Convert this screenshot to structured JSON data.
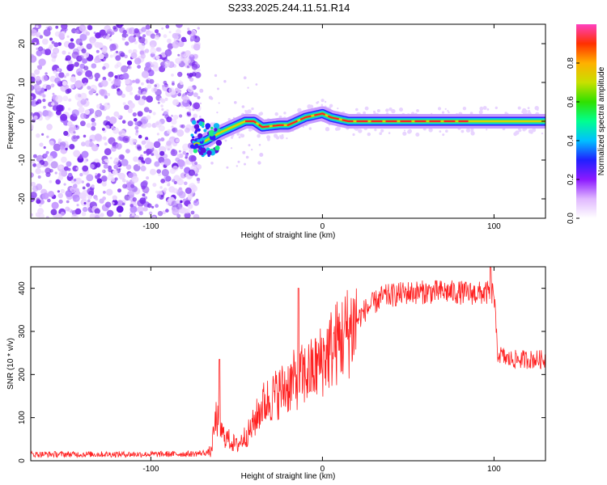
{
  "chart_data": [
    {
      "type": "heatmap",
      "title": "S233.2025.244.11.51.R14",
      "xlabel": "Height of straight line (km)",
      "ylabel": "Frequency (Hz)",
      "xlim": [
        -170,
        130
      ],
      "ylim": [
        -25,
        25
      ],
      "xticks": [
        -100,
        0,
        100
      ],
      "yticks": [
        -20,
        -10,
        0,
        10,
        20
      ],
      "noise_region_x": [
        -170,
        -75
      ],
      "ridge": [
        {
          "h": -75,
          "f": -6
        },
        {
          "h": -68,
          "f": -5
        },
        {
          "h": -60,
          "f": -3
        },
        {
          "h": -50,
          "f": -1
        },
        {
          "h": -45,
          "f": 0
        },
        {
          "h": -40,
          "f": 0
        },
        {
          "h": -35,
          "f": -1.5
        },
        {
          "h": -25,
          "f": -1
        },
        {
          "h": -20,
          "f": -1
        },
        {
          "h": -15,
          "f": 0
        },
        {
          "h": -10,
          "f": 1
        },
        {
          "h": -5,
          "f": 1.5
        },
        {
          "h": 0,
          "f": 2
        },
        {
          "h": 5,
          "f": 1
        },
        {
          "h": 10,
          "f": 0.5
        },
        {
          "h": 15,
          "f": 0
        },
        {
          "h": 130,
          "f": 0
        }
      ],
      "colorbar": {
        "label": "Normalized spectral amplitude",
        "range": [
          0,
          1
        ],
        "ticks": [
          0.0,
          0.2,
          0.4,
          0.6,
          0.8
        ],
        "tick_labels": [
          "0.0",
          "0.2",
          "0.4",
          "0.6",
          "0.8"
        ],
        "colors": [
          "#ffffff",
          "#e0b8ff",
          "#8c1aff",
          "#2020ff",
          "#00c0ff",
          "#00ff90",
          "#30e000",
          "#c8e000",
          "#ffb000",
          "#ff3000",
          "#ff40c0"
        ]
      }
    },
    {
      "type": "line",
      "xlabel": "Height of straight line (km)",
      "ylabel": "SNR (10 * v/v)",
      "xlim": [
        -170,
        130
      ],
      "ylim": [
        0,
        450
      ],
      "xticks": [
        -100,
        0,
        100
      ],
      "yticks": [
        0,
        100,
        200,
        300,
        400
      ],
      "series": [
        {
          "name": "SNR",
          "color": "#ff2020",
          "points": [
            {
              "h": -170,
              "snr": 15
            },
            {
              "h": -130,
              "snr": 15
            },
            {
              "h": -100,
              "snr": 15
            },
            {
              "h": -75,
              "snr": 16
            },
            {
              "h": -65,
              "snr": 20
            },
            {
              "h": -62,
              "snr": 100
            },
            {
              "h": -58,
              "snr": 60
            },
            {
              "h": -50,
              "snr": 35
            },
            {
              "h": -42,
              "snr": 70
            },
            {
              "h": -35,
              "snr": 130
            },
            {
              "h": -25,
              "snr": 160
            },
            {
              "h": -15,
              "snr": 190
            },
            {
              "h": -5,
              "snr": 210
            },
            {
              "h": 5,
              "snr": 260
            },
            {
              "h": 15,
              "snr": 300
            },
            {
              "h": 25,
              "snr": 350
            },
            {
              "h": 35,
              "snr": 380
            },
            {
              "h": 50,
              "snr": 390
            },
            {
              "h": 70,
              "snr": 392
            },
            {
              "h": 90,
              "snr": 388
            },
            {
              "h": 100,
              "snr": 390
            },
            {
              "h": 102,
              "snr": 250
            },
            {
              "h": 108,
              "snr": 235
            },
            {
              "h": 120,
              "snr": 235
            },
            {
              "h": 130,
              "snr": 235
            }
          ],
          "spikes": [
            {
              "h": -60,
              "snr": 235
            },
            {
              "h": -14,
              "snr": 400
            },
            {
              "h": 98,
              "snr": 450
            }
          ]
        }
      ]
    }
  ]
}
